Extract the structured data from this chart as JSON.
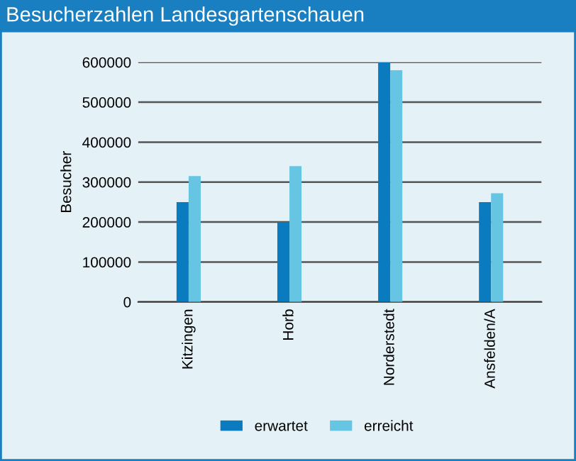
{
  "chart_data": {
    "type": "bar",
    "title": "Besucherzahlen Landesgartenschauen",
    "ylabel": "Besucher",
    "categories": [
      "Kitzingen",
      "Horb",
      "Norderstedt",
      "Ansfelden/A"
    ],
    "series": [
      {
        "name": "erwartet",
        "color": "#0a7bbf",
        "values": [
          250000,
          200000,
          600000,
          250000
        ]
      },
      {
        "name": "erreicht",
        "color": "#66c5e3",
        "values": [
          315000,
          340000,
          580000,
          272000
        ]
      }
    ],
    "ylim": [
      0,
      600000
    ],
    "yticks": [
      0,
      100000,
      200000,
      300000,
      400000,
      500000,
      600000
    ],
    "grid": "y",
    "legend": "bottom"
  }
}
